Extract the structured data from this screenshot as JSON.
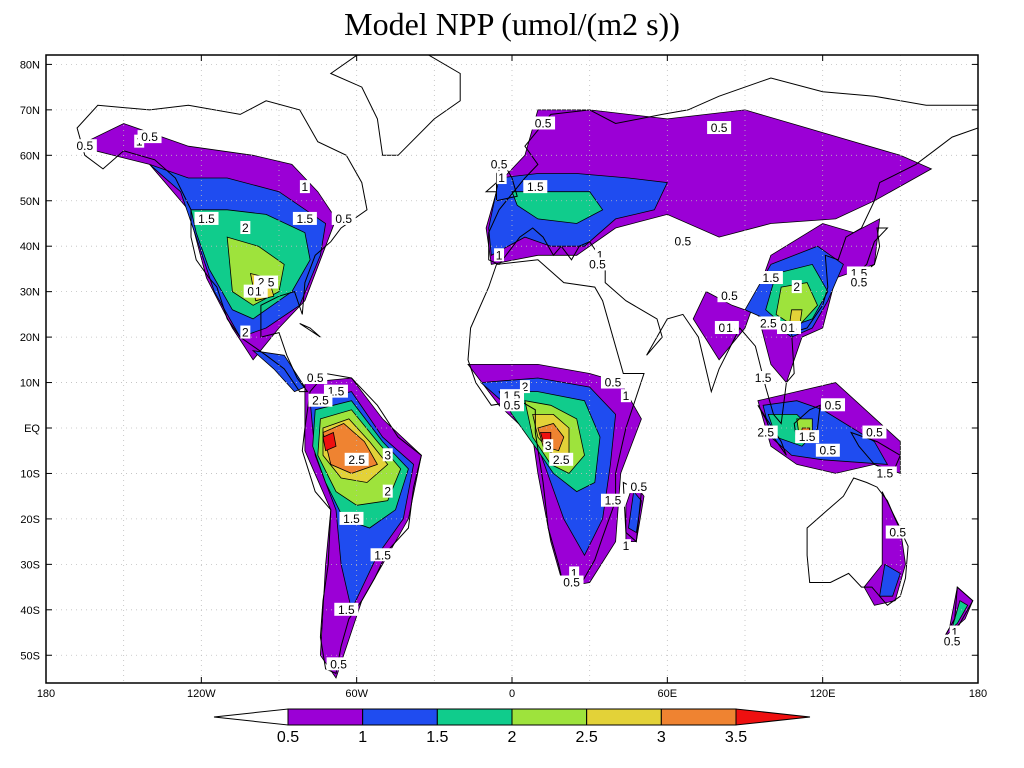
{
  "title": "Model NPP (umol/(m2 s))",
  "lon_ticks": [
    "180",
    "120W",
    "60W",
    "0",
    "60E",
    "120E",
    "180"
  ],
  "lat_ticks": [
    "80N",
    "70N",
    "60N",
    "50N",
    "40N",
    "30N",
    "20N",
    "10N",
    "EQ",
    "10S",
    "20S",
    "30S",
    "40S",
    "50S"
  ],
  "colorbar": {
    "levels": [
      "0.5",
      "1",
      "1.5",
      "2",
      "2.5",
      "3",
      "3.5"
    ],
    "colors": [
      "#ffffff",
      "#9b00d6",
      "#1f4cf0",
      "#10cc8c",
      "#9ee33c",
      "#e3d238",
      "#ef8331",
      "#ee1010"
    ]
  },
  "contour_labels": [
    {
      "text": "0.5",
      "lon": -165,
      "lat": 62
    },
    {
      "text": "1",
      "lon": -144,
      "lat": 63
    },
    {
      "text": "0.5",
      "lon": -140,
      "lat": 64
    },
    {
      "text": "1",
      "lon": -80,
      "lat": 53
    },
    {
      "text": "1.5",
      "lon": -118,
      "lat": 46
    },
    {
      "text": "2",
      "lon": -103,
      "lat": 44
    },
    {
      "text": "1.5",
      "lon": -80,
      "lat": 46
    },
    {
      "text": "0.5",
      "lon": -65,
      "lat": 46
    },
    {
      "text": "2.5",
      "lon": -95,
      "lat": 32
    },
    {
      "text": "0.5",
      "lon": -99,
      "lat": 30
    },
    {
      "text": "1",
      "lon": -98,
      "lat": 30
    },
    {
      "text": "2",
      "lon": -103,
      "lat": 21
    },
    {
      "text": "0.5",
      "lon": 12,
      "lat": 67
    },
    {
      "text": "0.5",
      "lon": 80,
      "lat": 66
    },
    {
      "text": "0.5",
      "lon": -5,
      "lat": 58
    },
    {
      "text": "1",
      "lon": -4,
      "lat": 55
    },
    {
      "text": "1.5",
      "lon": 9,
      "lat": 53
    },
    {
      "text": "0.5",
      "lon": 66,
      "lat": 41
    },
    {
      "text": "1",
      "lon": -5,
      "lat": 38
    },
    {
      "text": "1",
      "lon": 34,
      "lat": 38
    },
    {
      "text": "0.5",
      "lon": 33,
      "lat": 36
    },
    {
      "text": "1.5",
      "lon": 100,
      "lat": 33
    },
    {
      "text": "2",
      "lon": 110,
      "lat": 31
    },
    {
      "text": "1.5",
      "lon": 134,
      "lat": 34
    },
    {
      "text": "0.5",
      "lon": 134,
      "lat": 32
    },
    {
      "text": "0.5",
      "lon": 84,
      "lat": 29
    },
    {
      "text": "2.5",
      "lon": 99,
      "lat": 23
    },
    {
      "text": "0.5",
      "lon": 83,
      "lat": 22
    },
    {
      "text": "1",
      "lon": 84,
      "lat": 22
    },
    {
      "text": "0.5",
      "lon": 107,
      "lat": 22
    },
    {
      "text": "1",
      "lon": 108,
      "lat": 22
    },
    {
      "text": "1.5",
      "lon": 97,
      "lat": 11
    },
    {
      "text": "0.5",
      "lon": -76,
      "lat": 11
    },
    {
      "text": "1.5",
      "lon": -68,
      "lat": 8
    },
    {
      "text": "2.5",
      "lon": -74,
      "lat": 6
    },
    {
      "text": "2.5",
      "lon": -60,
      "lat": -7
    },
    {
      "text": "3",
      "lon": -48,
      "lat": -6
    },
    {
      "text": "2",
      "lon": -48,
      "lat": -14
    },
    {
      "text": "1.5",
      "lon": -62,
      "lat": -20
    },
    {
      "text": "1.5",
      "lon": -50,
      "lat": -28
    },
    {
      "text": "1.5",
      "lon": -64,
      "lat": -40
    },
    {
      "text": "0.5",
      "lon": -67,
      "lat": -52
    },
    {
      "text": "2",
      "lon": 5,
      "lat": 9
    },
    {
      "text": "1.5",
      "lon": 0,
      "lat": 7
    },
    {
      "text": "0.5",
      "lon": 0,
      "lat": 5
    },
    {
      "text": "0.5",
      "lon": 39,
      "lat": 10
    },
    {
      "text": "1",
      "lon": 44,
      "lat": 7
    },
    {
      "text": "3",
      "lon": 14,
      "lat": -4
    },
    {
      "text": "2.5",
      "lon": 19,
      "lat": -7
    },
    {
      "text": "1.5",
      "lon": 39,
      "lat": -16
    },
    {
      "text": "0.5",
      "lon": 49,
      "lat": -13
    },
    {
      "text": "1",
      "lon": 44,
      "lat": -26
    },
    {
      "text": "1",
      "lon": 24,
      "lat": -32
    },
    {
      "text": "0.5",
      "lon": 23,
      "lat": -34
    },
    {
      "text": "2.5",
      "lon": 98,
      "lat": -1
    },
    {
      "text": "1.5",
      "lon": 114,
      "lat": -2
    },
    {
      "text": "0.5",
      "lon": 122,
      "lat": -5
    },
    {
      "text": "0.5",
      "lon": 124,
      "lat": 5
    },
    {
      "text": "0.5",
      "lon": 140,
      "lat": -1
    },
    {
      "text": "1.5",
      "lon": 144,
      "lat": -10
    },
    {
      "text": "0.5",
      "lon": 149,
      "lat": -23
    },
    {
      "text": "1",
      "lon": 171,
      "lat": -45
    },
    {
      "text": "0.5",
      "lon": 170,
      "lat": -47
    }
  ]
}
